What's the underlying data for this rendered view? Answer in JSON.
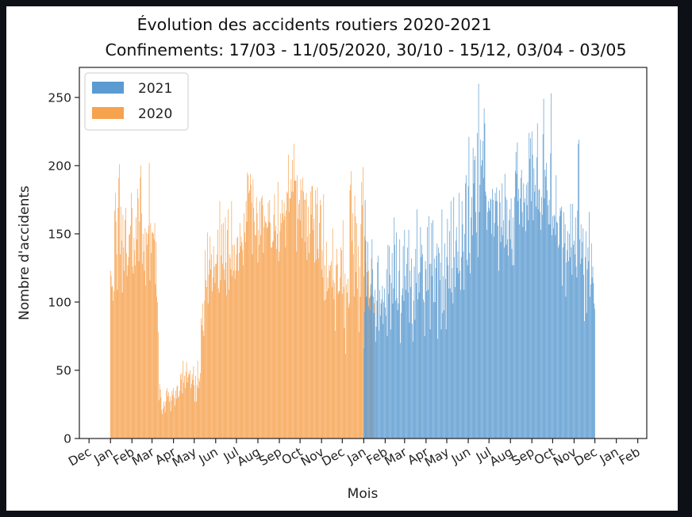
{
  "chart_data": {
    "type": "bar",
    "title": "Évolution des accidents routiers 2020-2021",
    "subtitle": "Confinements: 17/03 - 11/05/2020, 30/10 - 15/12, 03/04 - 03/05",
    "xlabel": "Mois",
    "ylabel": "Nombre d'accidents",
    "ylim": [
      0,
      272
    ],
    "yticks": [
      0,
      50,
      100,
      150,
      200,
      250
    ],
    "x_range_days": [
      -45,
      775
    ],
    "xticks": [
      {
        "label": "Dec",
        "day": -31
      },
      {
        "label": "Jan",
        "day": 0
      },
      {
        "label": "Feb",
        "day": 31
      },
      {
        "label": "Mar",
        "day": 60
      },
      {
        "label": "Apr",
        "day": 91
      },
      {
        "label": "May",
        "day": 121
      },
      {
        "label": "Jun",
        "day": 152
      },
      {
        "label": "Jul",
        "day": 182
      },
      {
        "label": "Aug",
        "day": 213
      },
      {
        "label": "Sep",
        "day": 244
      },
      {
        "label": "Oct",
        "day": 274
      },
      {
        "label": "Nov",
        "day": 305
      },
      {
        "label": "Dec",
        "day": 335
      },
      {
        "label": "Jan",
        "day": 366
      },
      {
        "label": "Feb",
        "day": 397
      },
      {
        "label": "Mar",
        "day": 425
      },
      {
        "label": "Apr",
        "day": 456
      },
      {
        "label": "May",
        "day": 486
      },
      {
        "label": "Jun",
        "day": 517
      },
      {
        "label": "Jul",
        "day": 547
      },
      {
        "label": "Aug",
        "day": 578
      },
      {
        "label": "Sep",
        "day": 609
      },
      {
        "label": "Oct",
        "day": 639
      },
      {
        "label": "Nov",
        "day": 670
      },
      {
        "label": "Dec",
        "day": 700
      },
      {
        "label": "Jan",
        "day": 731
      },
      {
        "label": "Feb",
        "day": 762
      }
    ],
    "legend": {
      "location": "top-left"
    },
    "series": [
      {
        "name": "2021",
        "color": "#5b9bd1",
        "start_day": 366,
        "values": [
          66,
          93,
          175,
          145,
          104,
          122,
          144,
          97,
          103,
          94,
          113,
          105,
          146,
          124,
          104,
          92,
          109,
          71,
          82,
          101,
          129,
          134,
          79,
          109,
          90,
          99,
          102,
          112,
          84,
          100,
          110,
          96,
          90,
          124,
          75,
          142,
          106,
          141,
          120,
          80,
          114,
          136,
          99,
          110,
          162,
          142,
          101,
          151,
          103,
          94,
          99,
          123,
          146,
          70,
          92,
          105,
          110,
          141,
          101,
          153,
          119,
          109,
          128,
          140,
          107,
          153,
          85,
          123,
          111,
          132,
          84,
          71,
          101,
          126,
          87,
          139,
          114,
          168,
          102,
          121,
          107,
          122,
          155,
          133,
          142,
          135,
          102,
          100,
          75,
          130,
          124,
          108,
          155,
          109,
          163,
          128,
          80,
          128,
          158,
          119,
          160,
          100,
          132,
          100,
          125,
          134,
          143,
          73,
          140,
          136,
          116,
          129,
          80,
          168,
          92,
          119,
          94,
          143,
          117,
          80,
          133,
          161,
          127,
          110,
          152,
          110,
          174,
          107,
          125,
          99,
          177,
          133,
          111,
          145,
          155,
          125,
          137,
          121,
          180,
          123,
          109,
          133,
          174,
          157,
          137,
          109,
          150,
          187,
          193,
          131,
          127,
          185,
          221,
          136,
          121,
          162,
          177,
          149,
          213,
          187,
          204,
          207,
          166,
          151,
          224,
          133,
          260,
          166,
          186,
          219,
          200,
          204,
          218,
          191,
          242,
          231,
          181,
          178,
          153,
          166,
          174,
          169,
          167,
          176,
          175,
          150,
          183,
          175,
          148,
          158,
          180,
          174,
          184,
          174,
          156,
          123,
          182,
          173,
          144,
          155,
          187,
          149,
          160,
          140,
          194,
          177,
          142,
          175,
          146,
          134,
          160,
          168,
          146,
          176,
          139,
          127,
          162,
          127,
          177,
          196,
          210,
          194,
          217,
          174,
          183,
          157,
          176,
          191,
          197,
          166,
          155,
          187,
          173,
          176,
          152,
          186,
          171,
          188,
          160,
          224,
          205,
          220,
          174,
          225,
          208,
          160,
          198,
          181,
          186,
          170,
          206,
          231,
          168,
          182,
          183,
          166,
          153,
          177,
          164,
          223,
          249,
          176,
          197,
          192,
          202,
          182,
          171,
          157,
          175,
          157,
          209,
          253,
          149,
          163,
          154,
          164,
          163,
          149,
          193,
          159,
          158,
          140,
          142,
          163,
          169,
          167,
          170,
          112,
          140,
          166,
          143,
          157,
          104,
          129,
          138,
          152,
          130,
          150,
          133,
          172,
          140,
          120,
          172,
          142,
          145,
          135,
          162,
          126,
          118,
          167,
          216,
          219,
          146,
          128,
          157,
          132,
          144,
          154,
          120,
          86,
          133,
          152,
          92,
          124,
          140,
          130,
          166,
          104,
          113,
          143,
          118,
          126,
          114,
          99,
          95
        ]
      },
      {
        "name": "2020",
        "color": "#f7a24f",
        "start_day": 0,
        "values": [
          123,
          119,
          111,
          112,
          101,
          108,
          167,
          180,
          159,
          135,
          109,
          169,
          191,
          201,
          135,
          170,
          145,
          107,
          164,
          140,
          123,
          160,
          169,
          136,
          119,
          127,
          133,
          149,
          150,
          156,
          180,
          169,
          126,
          121,
          147,
          138,
          127,
          162,
          146,
          183,
          176,
          130,
          159,
          191,
          200,
          165,
          128,
          150,
          137,
          123,
          154,
          112,
          151,
          142,
          150,
          156,
          202,
          116,
          158,
          136,
          151,
          151,
          150,
          146,
          158,
          113,
          144,
          104,
          100,
          78,
          28,
          40,
          36,
          30,
          21,
          18,
          22,
          27,
          24,
          19,
          27,
          35,
          37,
          31,
          34,
          27,
          31,
          20,
          28,
          35,
          32,
          37,
          30,
          24,
          35,
          29,
          38,
          39,
          30,
          31,
          35,
          47,
          43,
          48,
          33,
          57,
          41,
          46,
          37,
          49,
          56,
          41,
          45,
          48,
          47,
          50,
          37,
          40,
          47,
          43,
          53,
          39,
          27,
          46,
          27,
          39,
          57,
          37,
          44,
          42,
          48,
          88,
          83,
          99,
          79,
          75,
          101,
          138,
          116,
          111,
          151,
          99,
          120,
          131,
          148,
          124,
          135,
          108,
          118,
          141,
          126,
          114,
          128,
          128,
          135,
          153,
          110,
          107,
          174,
          116,
          134,
          157,
          128,
          158,
          124,
          116,
          162,
          129,
          105,
          153,
          168,
          109,
          135,
          132,
          124,
          174,
          119,
          142,
          123,
          142,
          117,
          123,
          135,
          147,
          148,
          123,
          136,
          158,
          141,
          148,
          144,
          138,
          127,
          165,
          151,
          144,
          174,
          159,
          195,
          193,
          180,
          182,
          194,
          186,
          173,
          135,
          190,
          169,
          159,
          149,
          149,
          177,
          165,
          129,
          153,
          142,
          174,
          149,
          176,
          178,
          171,
          136,
          155,
          163,
          159,
          158,
          154,
          155,
          173,
          159,
          175,
          158,
          140,
          140,
          144,
          145,
          164,
          179,
          152,
          156,
          139,
          150,
          188,
          130,
          137,
          152,
          165,
          158,
          175,
          165,
          160,
          173,
          163,
          140,
          167,
          181,
          180,
          208,
          166,
          176,
          176,
          190,
          181,
          204,
          181,
          216,
          189,
          189,
          189,
          137,
          193,
          161,
          172,
          175,
          160,
          190,
          182,
          147,
          191,
          181,
          175,
          144,
          175,
          180,
          131,
          148,
          170,
          136,
          150,
          181,
          164,
          185,
          185,
          153,
          161,
          129,
          182,
          131,
          172,
          184,
          139,
          132,
          158,
          175,
          171,
          124,
          138,
          118,
          179,
          101,
          127,
          102,
          144,
          108,
          118,
          110,
          127,
          123,
          127,
          130,
          111,
          154,
          116,
          102,
          114,
          79,
          127,
          139,
          128,
          106,
          108,
          108,
          118,
          140,
          138,
          106,
          160,
          111,
          81,
          121,
          62,
          113,
          107,
          117,
          96,
          99,
          182,
          186,
          196,
          145,
          165,
          135,
          104,
          178,
          163,
          122,
          158,
          110,
          141,
          78,
          126,
          104,
          157,
          188,
          171,
          199,
          119,
          148,
          173,
          129,
          101,
          86,
          112,
          123,
          95,
          104,
          110,
          132,
          80,
          89,
          92,
          99
        ]
      }
    ]
  }
}
